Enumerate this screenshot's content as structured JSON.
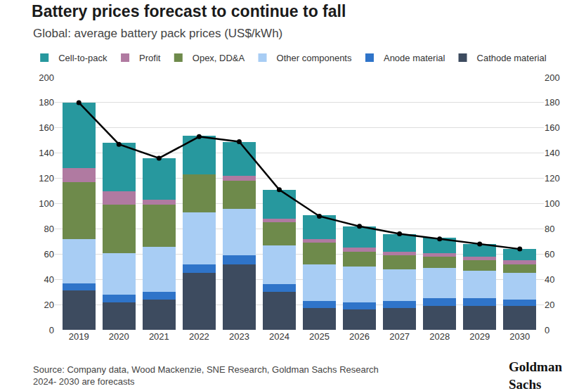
{
  "chart_data": {
    "type": "bar",
    "stacked": true,
    "grid": true,
    "legend": "top left",
    "title": "Battery prices forecast to continue to fall",
    "subtitle": "Global: average battery pack prices (US$/kWh)",
    "source": "Source: Company data, Wood Mackenzie, SNE Research, Goldman Sachs Research",
    "note": "2024- 2030 are forecasts",
    "logo": "Goldman Sachs",
    "categories": [
      "2019",
      "2020",
      "2021",
      "2022",
      "2023",
      "2024",
      "2025",
      "2026",
      "2027",
      "2028",
      "2029",
      "2030"
    ],
    "ylim": [
      0,
      200
    ],
    "yticks": [
      0,
      20,
      40,
      60,
      80,
      100,
      120,
      140,
      160,
      180,
      200
    ],
    "y2lim": [
      0,
      200
    ],
    "y2ticks": [
      0,
      20,
      40,
      60,
      80,
      100,
      120,
      140,
      160,
      180,
      200
    ],
    "series": [
      {
        "name": "Cathode material",
        "color": "#3d4b5f",
        "values": [
          31,
          22,
          24,
          45,
          52,
          30,
          17,
          16,
          17,
          19,
          19,
          19
        ]
      },
      {
        "name": "Anode material",
        "color": "#2f74c9",
        "values": [
          6,
          6,
          6,
          7,
          7,
          6,
          6,
          6,
          6,
          6,
          6,
          5
        ]
      },
      {
        "name": "Other components",
        "color": "#a8cdf4",
        "values": [
          35,
          33,
          36,
          41,
          37,
          31,
          29,
          28,
          25,
          24,
          22,
          21
        ]
      },
      {
        "name": "Opex, DD&A",
        "color": "#6e8a4b",
        "values": [
          45,
          38,
          33,
          30,
          22,
          18,
          17,
          12,
          11,
          9,
          8,
          7
        ]
      },
      {
        "name": "Profit",
        "color": "#b07aa1",
        "values": [
          11,
          11,
          4,
          0,
          4,
          3,
          3,
          3,
          3,
          3,
          3,
          3
        ]
      },
      {
        "name": "Cell-to-pack",
        "color": "#27989e",
        "values": [
          52,
          38,
          33,
          31,
          27,
          23,
          19,
          17,
          14,
          12,
          10,
          9
        ]
      },
      {
        "type": "line",
        "axis": "y2",
        "color": "#000000",
        "marker": "circle",
        "line_style": "solid",
        "values": [
          180,
          147,
          136,
          153,
          149,
          111,
          90,
          82,
          76,
          72,
          68,
          64
        ]
      }
    ]
  }
}
